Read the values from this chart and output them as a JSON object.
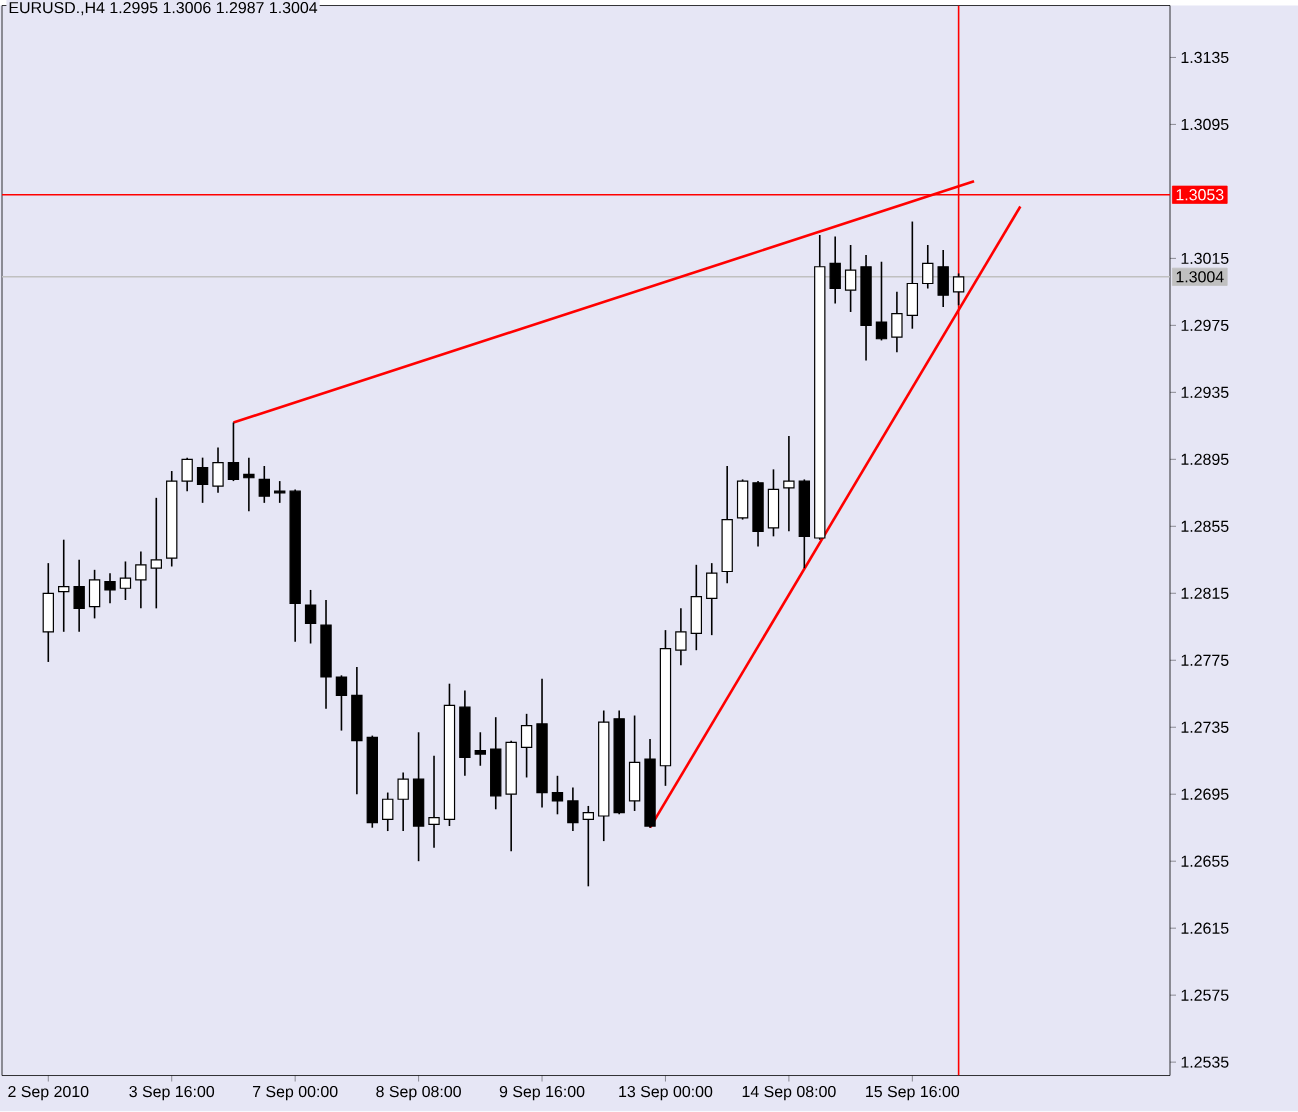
{
  "chart_data": {
    "type": "candlestick",
    "title": "EURUSD.,H4  1.2995 1.3006 1.2987 1.3004",
    "categories": [
      "2 Sep 2010",
      null,
      null,
      null,
      null,
      null,
      null,
      null,
      "3 Sep 16:00",
      null,
      null,
      null,
      null,
      null,
      null,
      null,
      "7 Sep 00:00",
      null,
      null,
      null,
      null,
      null,
      null,
      null,
      "8 Sep 08:00",
      null,
      null,
      null,
      null,
      null,
      null,
      null,
      "9 Sep 16:00",
      null,
      null,
      null,
      null,
      null,
      null,
      null,
      "13 Sep 00:00",
      null,
      null,
      null,
      null,
      null,
      null,
      null,
      "14 Sep 08:00",
      null,
      null,
      null,
      null,
      null,
      null,
      null,
      "15 Sep 16:00",
      null,
      null,
      null,
      null,
      null,
      null,
      null,
      null,
      null,
      null,
      null,
      null,
      null,
      null,
      null,
      null
    ],
    "ohlc": [
      [
        1.2792,
        1.2833,
        1.2774,
        1.2815
      ],
      [
        1.2816,
        1.2847,
        1.2792,
        1.2819
      ],
      [
        1.2819,
        1.2835,
        1.2792,
        1.2806
      ],
      [
        1.2807,
        1.2829,
        1.28,
        1.2823
      ],
      [
        1.2822,
        1.2827,
        1.2809,
        1.2817
      ],
      [
        1.2818,
        1.2834,
        1.2811,
        1.2824
      ],
      [
        1.2823,
        1.284,
        1.2806,
        1.2832
      ],
      [
        1.283,
        1.2872,
        1.2806,
        1.2835
      ],
      [
        1.2836,
        1.2888,
        1.2831,
        1.2882
      ],
      [
        1.2882,
        1.2896,
        1.2876,
        1.2895
      ],
      [
        1.289,
        1.2896,
        1.2869,
        1.288
      ],
      [
        1.2879,
        1.2902,
        1.2875,
        1.2893
      ],
      [
        1.2893,
        1.2917,
        1.2882,
        1.2883
      ],
      [
        1.2886,
        1.2896,
        1.2864,
        1.2884
      ],
      [
        1.2883,
        1.2891,
        1.2869,
        1.2873
      ],
      [
        1.2876,
        1.2882,
        1.2869,
        1.2875
      ],
      [
        1.2876,
        1.2877,
        1.2786,
        1.2809
      ],
      [
        1.2808,
        1.2817,
        1.2785,
        1.2797
      ],
      [
        1.2796,
        1.2811,
        1.2746,
        1.2765
      ],
      [
        1.2765,
        1.2766,
        1.2733,
        1.2754
      ],
      [
        1.2754,
        1.2771,
        1.2695,
        1.2727
      ],
      [
        1.2729,
        1.273,
        1.2675,
        1.2678
      ],
      [
        1.268,
        1.2696,
        1.2673,
        1.2692
      ],
      [
        1.2692,
        1.2708,
        1.2673,
        1.2704
      ],
      [
        1.2704,
        1.2732,
        1.2655,
        1.2676
      ],
      [
        1.2677,
        1.2718,
        1.2663,
        1.2681
      ],
      [
        1.268,
        1.2761,
        1.2676,
        1.2748
      ],
      [
        1.2747,
        1.2757,
        1.2706,
        1.2717
      ],
      [
        1.2721,
        1.2732,
        1.2712,
        1.2719
      ],
      [
        1.2722,
        1.2741,
        1.2686,
        1.2694
      ],
      [
        1.2695,
        1.2727,
        1.2661,
        1.2726
      ],
      [
        1.2723,
        1.2743,
        1.2705,
        1.2736
      ],
      [
        1.2737,
        1.2764,
        1.2687,
        1.2696
      ],
      [
        1.2696,
        1.2706,
        1.2683,
        1.2691
      ],
      [
        1.2691,
        1.2699,
        1.2673,
        1.2678
      ],
      [
        1.268,
        1.2688,
        1.264,
        1.2684
      ],
      [
        1.2682,
        1.2745,
        1.2667,
        1.2738
      ],
      [
        1.274,
        1.2745,
        1.2683,
        1.2684
      ],
      [
        1.2691,
        1.2742,
        1.2685,
        1.2714
      ],
      [
        1.2716,
        1.2728,
        1.2675,
        1.2676
      ],
      [
        1.2712,
        1.2793,
        1.27,
        1.2782
      ],
      [
        1.2781,
        1.2806,
        1.2772,
        1.2792
      ],
      [
        1.2791,
        1.2832,
        1.2781,
        1.2813
      ],
      [
        1.2812,
        1.2833,
        1.279,
        1.2827
      ],
      [
        1.2828,
        1.2891,
        1.2821,
        1.2859
      ],
      [
        1.286,
        1.2883,
        1.2859,
        1.2882
      ],
      [
        1.2881,
        1.2882,
        1.2843,
        1.2852
      ],
      [
        1.2854,
        1.2889,
        1.2849,
        1.2877
      ],
      [
        1.2878,
        1.2909,
        1.2852,
        1.2882
      ],
      [
        1.2882,
        1.2883,
        1.283,
        1.2849
      ],
      [
        1.2848,
        1.3029,
        1.2847,
        1.301
      ],
      [
        1.3012,
        1.3028,
        1.2988,
        1.2997
      ],
      [
        1.2996,
        1.3023,
        1.2983,
        1.3008
      ],
      [
        1.301,
        1.3017,
        1.2954,
        1.2975
      ],
      [
        1.2977,
        1.3013,
        1.2966,
        1.2967
      ],
      [
        1.2968,
        1.2995,
        1.2959,
        1.2982
      ],
      [
        1.2981,
        1.3037,
        1.2973,
        1.3
      ],
      [
        1.3,
        1.3023,
        1.2997,
        1.3012
      ],
      [
        1.301,
        1.302,
        1.2986,
        1.2993
      ],
      [
        1.2995,
        1.3006,
        1.2987,
        1.3004
      ],
      null,
      null,
      null,
      null,
      null,
      null,
      null,
      null,
      null,
      null,
      null,
      null,
      null
    ],
    "series": [
      {
        "type": "line",
        "color": "#ff0000",
        "values": [
          null,
          null,
          null,
          null,
          null,
          null,
          null,
          null,
          null,
          null,
          null,
          null,
          1.2917,
          null,
          null,
          null,
          null,
          null,
          null,
          null,
          null,
          null,
          null,
          null,
          null,
          null,
          null,
          null,
          null,
          null,
          null,
          null,
          null,
          null,
          null,
          null,
          null,
          null,
          null,
          null,
          null,
          null,
          null,
          null,
          null,
          null,
          null,
          null,
          null,
          null,
          null,
          null,
          null,
          null,
          null,
          null,
          null,
          null,
          null,
          null,
          1.3061,
          null,
          null,
          null,
          null,
          null,
          null,
          null,
          null,
          null,
          null,
          null,
          null
        ]
      },
      {
        "type": "line",
        "color": "#ff0000",
        "values": [
          null,
          null,
          null,
          null,
          null,
          null,
          null,
          null,
          null,
          null,
          null,
          null,
          null,
          null,
          null,
          null,
          null,
          null,
          null,
          null,
          null,
          null,
          null,
          null,
          null,
          null,
          null,
          null,
          null,
          null,
          null,
          null,
          null,
          null,
          null,
          null,
          null,
          null,
          null,
          1.2675,
          null,
          null,
          null,
          null,
          null,
          null,
          null,
          null,
          null,
          null,
          null,
          null,
          null,
          null,
          null,
          null,
          null,
          null,
          null,
          null,
          null,
          null,
          null,
          1.3046,
          null,
          null,
          null,
          null,
          null,
          null,
          null,
          null,
          null
        ]
      }
    ],
    "ylim": [
      1.2527,
      1.3166
    ],
    "yticks": [
      1.2535,
      1.2575,
      1.2615,
      1.2655,
      1.2695,
      1.2735,
      1.2775,
      1.2815,
      1.2855,
      1.2895,
      1.2935,
      1.2975,
      1.3015,
      1.3095,
      1.3135
    ],
    "ref_lines": [
      {
        "axis": "y",
        "value": 1.3053,
        "label": "1.3053",
        "color": "#ff0000"
      },
      {
        "axis": "y",
        "value": 1.3004,
        "label": "1.3004",
        "color": "#c0c0c0"
      }
    ],
    "grid": false
  }
}
